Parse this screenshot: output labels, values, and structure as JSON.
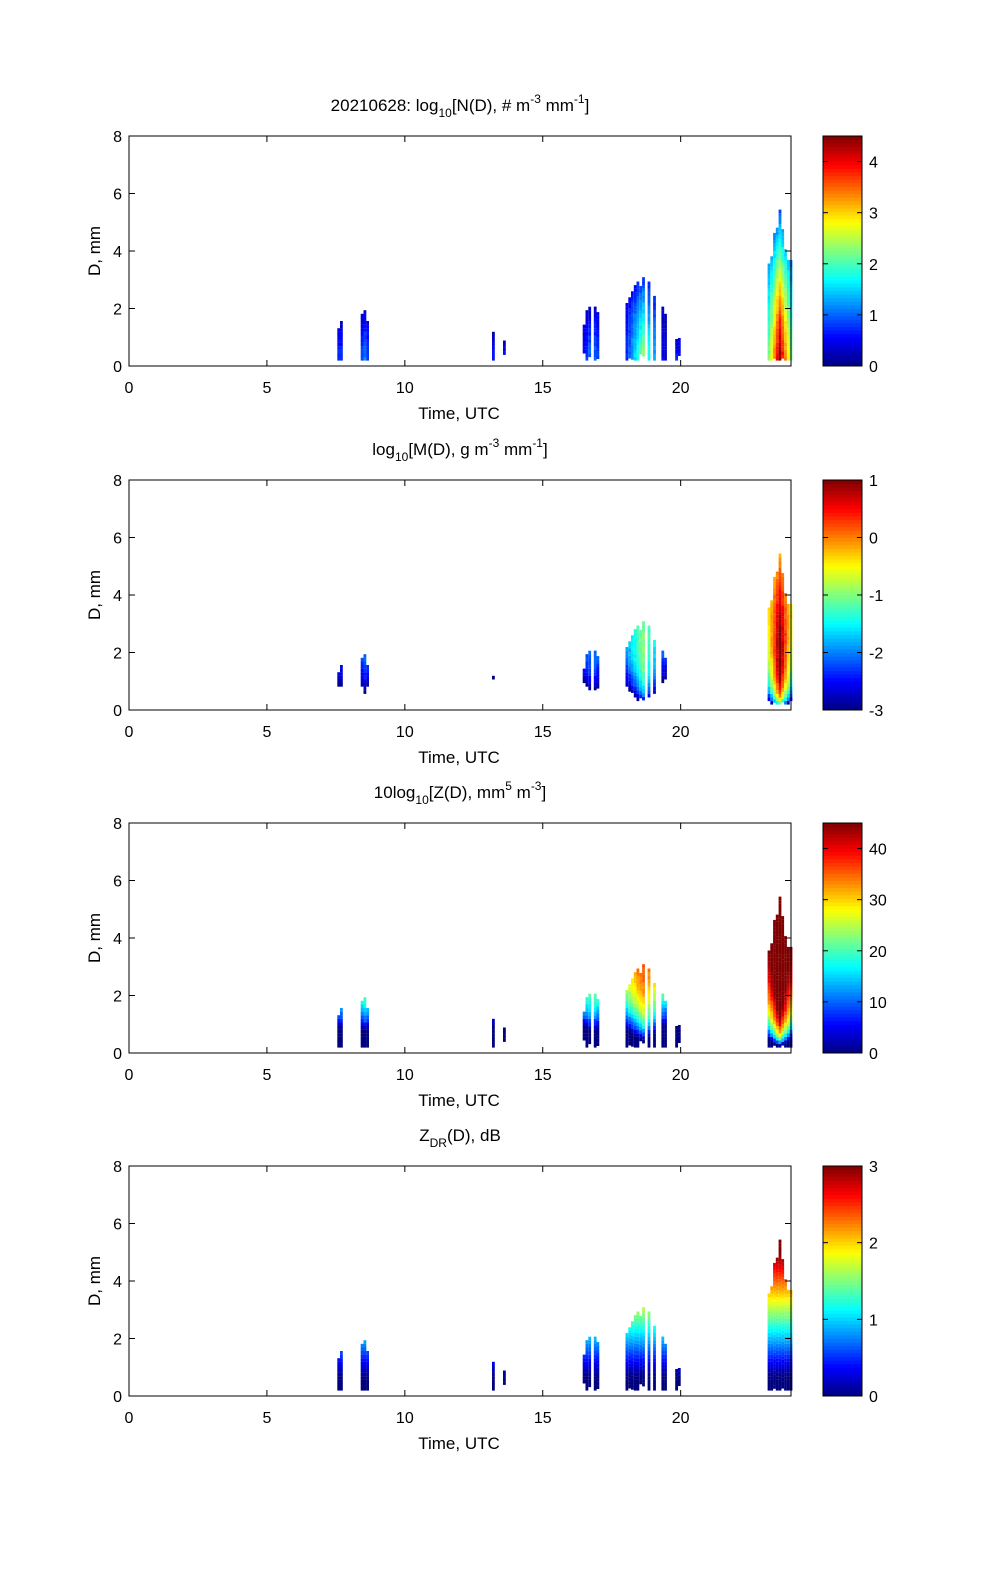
{
  "chart_data": [
    {
      "type": "heatmap",
      "title": "20210628: log10 [N(D), # m-3 mm-1]",
      "title_parts": [
        "20210628: log",
        "10",
        "[N(D), # m",
        "-3",
        " mm",
        "-1",
        "]"
      ],
      "quantity": "logN",
      "xlabel": "Time, UTC",
      "ylabel": "D, mm",
      "xlim": [
        0,
        24
      ],
      "ylim": [
        0,
        8
      ],
      "xticks": [
        "0",
        "5",
        "10",
        "15",
        "20"
      ],
      "yticks": [
        "0",
        "2",
        "4",
        "6",
        "8"
      ],
      "clim": [
        0,
        4.5
      ],
      "cticks": [
        "0",
        "1",
        "2",
        "3",
        "4"
      ],
      "ctick_values": [
        0,
        1,
        2,
        3,
        4
      ],
      "colormap": "jet"
    },
    {
      "type": "heatmap",
      "title": "log10 [M(D), g m-3 mm-1]",
      "title_parts": [
        "log",
        "10",
        "[M(D), g m",
        "-3",
        " mm",
        "-1",
        "]"
      ],
      "quantity": "logM",
      "xlabel": "Time, UTC",
      "ylabel": "D, mm",
      "xlim": [
        0,
        24
      ],
      "ylim": [
        0,
        8
      ],
      "xticks": [
        "0",
        "5",
        "10",
        "15",
        "20"
      ],
      "yticks": [
        "0",
        "2",
        "4",
        "6",
        "8"
      ],
      "clim": [
        -3,
        1
      ],
      "cticks": [
        "-3",
        "-2",
        "-1",
        "0",
        "1"
      ],
      "ctick_values": [
        -3,
        -2,
        -1,
        0,
        1
      ],
      "colormap": "jet"
    },
    {
      "type": "heatmap",
      "title": "10log10 [Z(D), mm5 m-3]",
      "title_parts": [
        "10log",
        "10",
        "[Z(D),  mm",
        "5",
        " m",
        "-3",
        "]"
      ],
      "quantity": "Z",
      "xlabel": "Time, UTC",
      "ylabel": "D, mm",
      "xlim": [
        0,
        24
      ],
      "ylim": [
        0,
        8
      ],
      "xticks": [
        "0",
        "5",
        "10",
        "15",
        "20"
      ],
      "yticks": [
        "0",
        "2",
        "4",
        "6",
        "8"
      ],
      "clim": [
        0,
        45
      ],
      "cticks": [
        "0",
        "10",
        "20",
        "30",
        "40"
      ],
      "ctick_values": [
        0,
        10,
        20,
        30,
        40
      ],
      "colormap": "jet"
    },
    {
      "type": "heatmap",
      "title": "ZDR(D), dB",
      "title_parts": [
        "Z",
        "DR",
        "(D), dB",
        "",
        "",
        "",
        ""
      ],
      "quantity": "ZDR",
      "xlabel": "Time, UTC",
      "ylabel": "D, mm",
      "xlim": [
        0,
        24
      ],
      "ylim": [
        0,
        8
      ],
      "xticks": [
        "0",
        "5",
        "10",
        "15",
        "20"
      ],
      "yticks": [
        "0",
        "2",
        "4",
        "6",
        "8"
      ],
      "clim": [
        0,
        3
      ],
      "cticks": [
        "0",
        "1",
        "2",
        "3"
      ],
      "ctick_values": [
        0,
        1,
        2,
        3
      ],
      "colormap": "jet"
    }
  ],
  "events": [
    {
      "t_center": 7.6,
      "half_width": 0.05,
      "d_max": 1.7,
      "peak_logN": 1.0
    },
    {
      "t_center": 8.5,
      "half_width": 0.1,
      "d_max": 2.1,
      "peak_logN": 1.2
    },
    {
      "t_center": 13.2,
      "half_width": 0.04,
      "d_max": 1.3,
      "peak_logN": 0.8
    },
    {
      "t_center": 13.6,
      "half_width": 0.04,
      "d_max": 1.0,
      "peak_logN": 0.8
    },
    {
      "t_center": 16.75,
      "half_width": 0.3,
      "d_max": 2.3,
      "peak_logN": 1.3
    },
    {
      "t_center": 18.6,
      "half_width": 0.6,
      "d_max": 3.5,
      "peak_logN": 2.4
    },
    {
      "t_center": 19.85,
      "half_width": 0.05,
      "d_max": 1.1,
      "peak_logN": 1.0
    },
    {
      "t_center": 23.55,
      "half_width": 0.5,
      "d_max": 5.5,
      "peak_logN": 4.5
    }
  ]
}
